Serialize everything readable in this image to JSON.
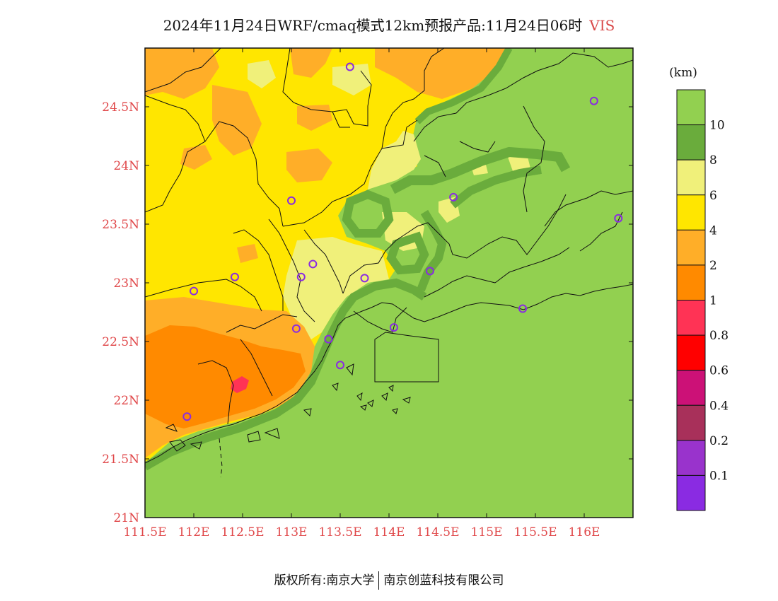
{
  "title": {
    "text": "2024年11月24日WRF/cmaq模式12km预报产品:11月24日06时",
    "variable": "VIS"
  },
  "map": {
    "lon_range": [
      111.5,
      116.5
    ],
    "lat_range": [
      21.0,
      25.0
    ],
    "x_ticks": [
      "111.5E",
      "112E",
      "112.5E",
      "113E",
      "113.5E",
      "114E",
      "114.5E",
      "115E",
      "115.5E",
      "116E"
    ],
    "y_ticks": [
      "21N",
      "21.5N",
      "22N",
      "22.5N",
      "23N",
      "23.5N",
      "24N",
      "24.5N"
    ],
    "colors": {
      "over10": "#92d050",
      "8to10": "#6aac3c",
      "6to8": "#f0f07a",
      "4to6": "#ffe600",
      "2to4": "#ffae28",
      "1to2": "#ff8a00",
      "0.8to1": "#ff3355"
    },
    "city_markers": [
      [
        113.6,
        24.84
      ],
      [
        116.1,
        24.55
      ],
      [
        113.0,
        23.7
      ],
      [
        114.66,
        23.73
      ],
      [
        116.35,
        23.55
      ],
      [
        112.42,
        23.05
      ],
      [
        113.1,
        23.05
      ],
      [
        113.22,
        23.16
      ],
      [
        113.75,
        23.04
      ],
      [
        114.42,
        23.1
      ],
      [
        112.0,
        22.93
      ],
      [
        113.05,
        22.61
      ],
      [
        113.38,
        22.52
      ],
      [
        114.05,
        22.62
      ],
      [
        115.37,
        22.78
      ],
      [
        113.5,
        22.3
      ],
      [
        111.93,
        21.86
      ]
    ]
  },
  "legend": {
    "unit": "(km)",
    "labels": [
      "10",
      "8",
      "6",
      "4",
      "2",
      "1",
      "0.8",
      "0.6",
      "0.4",
      "0.2",
      "0.1"
    ],
    "colors": [
      "#92d050",
      "#6aac3c",
      "#f0f07a",
      "#ffe600",
      "#ffae28",
      "#ff8a00",
      "#ff3355",
      "#ff0000",
      "#cc1177",
      "#a8305a",
      "#9933cc",
      "#8a2be2"
    ]
  },
  "footer": {
    "left": "版权所有:南京大学",
    "right": "南京创蓝科技有限公司"
  }
}
